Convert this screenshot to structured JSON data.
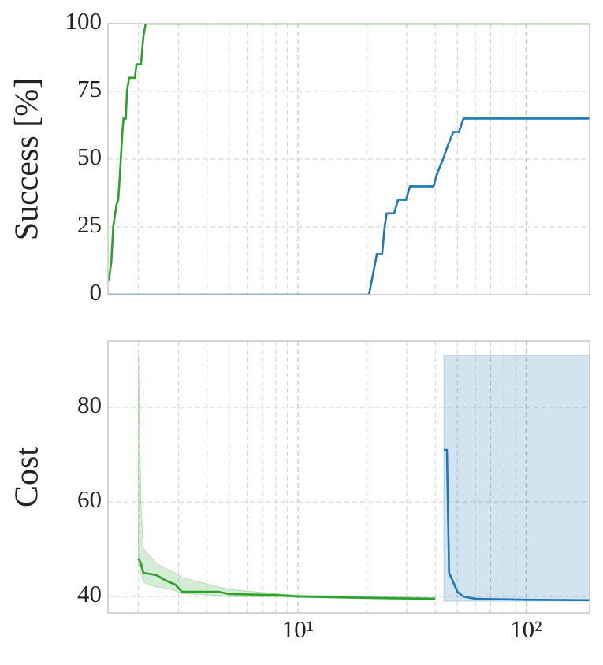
{
  "chart_data": [
    {
      "type": "line",
      "ylabel": "Success [%]",
      "xscale": "log",
      "grid": true,
      "xlim": [
        1.47,
        190
      ],
      "xticks": [
        10,
        100
      ],
      "xminorticks": [
        2,
        3,
        4,
        5,
        6,
        7,
        8,
        9,
        20,
        30,
        40,
        50,
        60,
        70,
        80,
        90
      ],
      "ylim": [
        0,
        100
      ],
      "yticks": [
        0,
        25,
        50,
        75,
        100
      ],
      "series": [
        {
          "color": "#2ca02c",
          "x": [
            1.48,
            1.52,
            1.55,
            1.6,
            1.63,
            1.66,
            1.7,
            1.72,
            1.76,
            1.78,
            1.82,
            1.93,
            1.96,
            2.05,
            2.1,
            2.15,
            190
          ],
          "values": [
            5,
            12,
            25,
            33,
            35,
            45,
            60,
            65,
            65,
            75,
            80,
            80,
            85,
            85,
            95,
            100,
            100
          ]
        },
        {
          "color": "#1f77b4",
          "x": [
            1.47,
            20.5,
            22.2,
            23.4,
            24.0,
            24.5,
            26.4,
            27.5,
            29.8,
            31.0,
            39.3,
            40.9,
            43.3,
            45.4,
            48.0,
            50.8,
            53.2,
            190
          ],
          "values": [
            0,
            0,
            15,
            15,
            25,
            30,
            30,
            35,
            35,
            40,
            40,
            45,
            50,
            55,
            60,
            60,
            65,
            65
          ]
        }
      ]
    },
    {
      "type": "line",
      "ylabel": "Cost",
      "xscale": "log",
      "grid": true,
      "xlim": [
        1.47,
        190
      ],
      "xticks": [
        {
          "value": 10,
          "label": "10¹"
        },
        {
          "value": 100,
          "label": "10²"
        }
      ],
      "xminorticks": [
        2,
        3,
        4,
        5,
        6,
        7,
        8,
        9,
        20,
        30,
        40,
        50,
        60,
        70,
        80,
        90
      ],
      "ylim": [
        36.5,
        94
      ],
      "yticks": [
        40,
        60,
        80
      ],
      "series": [
        {
          "color": "#2ca02c",
          "x": [
            2.0,
            2.05,
            2.1,
            2.4,
            2.6,
            2.9,
            3.1,
            4.5,
            5,
            8,
            10,
            20,
            40
          ],
          "values": [
            48,
            47,
            45,
            44.5,
            43.5,
            42.5,
            41,
            41,
            40.5,
            40.3,
            40,
            39.7,
            39.5
          ],
          "lower": [
            47,
            45,
            43,
            42,
            41.8,
            41.2,
            40.6,
            40.2,
            40,
            39.9,
            39.8,
            39.5,
            39.3
          ],
          "upper": [
            91,
            60,
            50,
            47,
            46,
            45,
            44,
            42,
            41.5,
            40.6,
            40.3,
            40,
            39.8
          ]
        },
        {
          "color": "#1f77b4",
          "x": [
            43.6,
            45,
            46,
            48,
            50,
            53,
            60,
            100,
            190
          ],
          "values": [
            71,
            71,
            45,
            43,
            41,
            40,
            39.5,
            39.3,
            39.2
          ],
          "lower": [
            39,
            39,
            39,
            39,
            39,
            39,
            39,
            39,
            39
          ],
          "upper": [
            91,
            91,
            91,
            91,
            91,
            91,
            91,
            91,
            91
          ]
        }
      ]
    }
  ]
}
